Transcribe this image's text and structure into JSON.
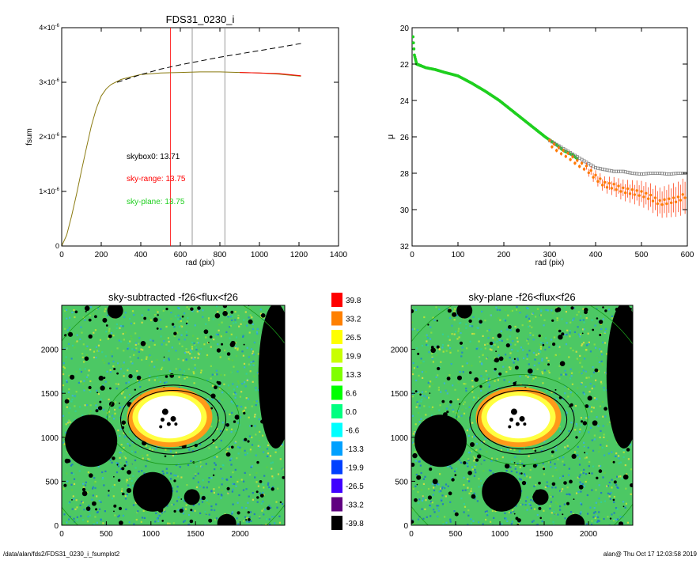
{
  "footer": {
    "path": "/data/alan/fds2/FDS31_0230_i_fsumplot2",
    "stamp": "alan@  Thu Oct 17 12:03:58 2019"
  },
  "colors": {
    "black": "#000000",
    "red": "#ff0000",
    "green": "#1ecf1e",
    "olive": "#8a7a10",
    "orange": "#ff7a00",
    "grey": "#808080"
  },
  "chart_data": [
    {
      "type": "line",
      "title": "FDS31_0230_i",
      "xlabel": "rad (pix)",
      "ylabel": "fsum",
      "xlim": [
        0,
        1400
      ],
      "ylim": [
        0,
        4e-06
      ],
      "xticks": [
        "0",
        "200",
        "400",
        "600",
        "800",
        "1000",
        "1200",
        "1400"
      ],
      "yticks": [
        "0",
        "1×10",
        "2×10",
        "3×10",
        "4×10"
      ],
      "ytick_exponent": "-6",
      "vlines": [
        {
          "x": 550,
          "color": "#ff0000"
        },
        {
          "x": 660,
          "color": "#808080"
        },
        {
          "x": 825,
          "color": "#808080"
        }
      ],
      "annotations": [
        {
          "text": "skybox0: 13.71",
          "color": "#000000"
        },
        {
          "text": "sky-range: 13.75",
          "color": "#ff0000"
        },
        {
          "text": "sky-plane: 13.75",
          "color": "#1ecf1e"
        }
      ],
      "series": [
        {
          "style": "solid",
          "color": "#8a7a10",
          "x": [
            0,
            25,
            50,
            75,
            100,
            125,
            150,
            175,
            200,
            225,
            250,
            300,
            350,
            400,
            500,
            600,
            700,
            800,
            900,
            1000,
            1100,
            1150,
            1210
          ],
          "y": [
            0,
            2e-07,
            5.5e-07,
            9.5e-07,
            1.38e-06,
            1.8e-06,
            2.2e-06,
            2.52e-06,
            2.75e-06,
            2.88e-06,
            2.96e-06,
            3.05e-06,
            3.1e-06,
            3.14e-06,
            3.17e-06,
            3.18e-06,
            3.19e-06,
            3.19e-06,
            3.18e-06,
            3.17e-06,
            3.15e-06,
            3.13e-06,
            3.11e-06
          ]
        },
        {
          "style": "solid",
          "color": "#ff0000",
          "x": [
            900,
            1000,
            1100,
            1150,
            1210
          ],
          "y": [
            3.18e-06,
            3.17e-06,
            3.16e-06,
            3.14e-06,
            3.12e-06
          ]
        },
        {
          "style": "dashed",
          "color": "#000000",
          "x": [
            280,
            400,
            500,
            600,
            700,
            800,
            900,
            1000,
            1100,
            1210
          ],
          "y": [
            3e-06,
            3.14e-06,
            3.24e-06,
            3.32e-06,
            3.39e-06,
            3.46e-06,
            3.52e-06,
            3.58e-06,
            3.64e-06,
            3.71e-06
          ]
        }
      ]
    },
    {
      "type": "scatter",
      "title": "",
      "xlabel": "rad (pix)",
      "ylabel": "μ",
      "xlim": [
        0,
        600
      ],
      "ylim": [
        32,
        20
      ],
      "xticks": [
        "0",
        "100",
        "200",
        "300",
        "400",
        "500",
        "600"
      ],
      "yticks": [
        "20",
        "22",
        "24",
        "26",
        "28",
        "30",
        "32"
      ],
      "series": [
        {
          "name": "",
          "color": "#1ecf1e",
          "x": [
            2,
            5,
            10,
            20,
            30,
            50,
            70,
            100,
            130,
            160,
            190,
            220,
            250,
            270,
            290,
            310,
            330,
            350,
            360
          ],
          "y": [
            20.5,
            21.5,
            22.0,
            22.1,
            22.2,
            22.3,
            22.45,
            22.65,
            23.05,
            23.5,
            24.0,
            24.6,
            25.2,
            25.6,
            26.0,
            26.35,
            26.75,
            27.0,
            27.2
          ]
        },
        {
          "name": "",
          "color": "#808080",
          "x": [
            300,
            320,
            340,
            360,
            380,
            400,
            420,
            440,
            460,
            480,
            500,
            520,
            540,
            560,
            580,
            595
          ],
          "y": [
            26.2,
            26.5,
            26.8,
            27.1,
            27.4,
            27.7,
            27.8,
            27.9,
            27.9,
            28.0,
            28.05,
            28.0,
            28.0,
            28.05,
            28.0,
            28.0
          ]
        },
        {
          "name": "",
          "color": "#ff7a00",
          "x": [
            300,
            320,
            340,
            360,
            380,
            400,
            420,
            440,
            460,
            480,
            500,
            520,
            540,
            560,
            580,
            595
          ],
          "y": [
            26.3,
            26.7,
            27.0,
            27.4,
            27.7,
            28.2,
            28.6,
            28.7,
            28.9,
            29.0,
            29.1,
            29.3,
            29.6,
            29.5,
            29.4,
            29.2
          ]
        }
      ]
    },
    {
      "type": "heatmap",
      "title": "sky-subtracted -f26<flux<f26",
      "xlim": [
        0,
        2500
      ],
      "ylim": [
        0,
        2500
      ],
      "xticks": [
        "0",
        "500",
        "1000",
        "1500",
        "2000"
      ],
      "yticks": [
        "0",
        "500",
        "1000",
        "1500",
        "2000"
      ]
    },
    {
      "type": "heatmap",
      "title": "sky-plane -f26<flux<f26",
      "xlim": [
        0,
        2500
      ],
      "ylim": [
        0,
        2500
      ],
      "xticks": [
        "0",
        "500",
        "1000",
        "1500",
        "2000"
      ],
      "yticks": [
        "0",
        "500",
        "1000",
        "1500",
        "2000"
      ]
    },
    {
      "type": "colorbar",
      "labels": [
        "39.8",
        "33.2",
        "26.5",
        "19.9",
        "13.3",
        "6.6",
        "0.0",
        "-6.6",
        "-13.3",
        "-19.9",
        "-26.5",
        "-33.2",
        "-39.8"
      ],
      "colors": [
        "#ff0000",
        "#ff8000",
        "#ffff00",
        "#c8ff00",
        "#80ff00",
        "#00ff00",
        "#00ff80",
        "#00ffff",
        "#00a0ff",
        "#0040ff",
        "#4000ff",
        "#600080",
        "#000000"
      ]
    }
  ]
}
